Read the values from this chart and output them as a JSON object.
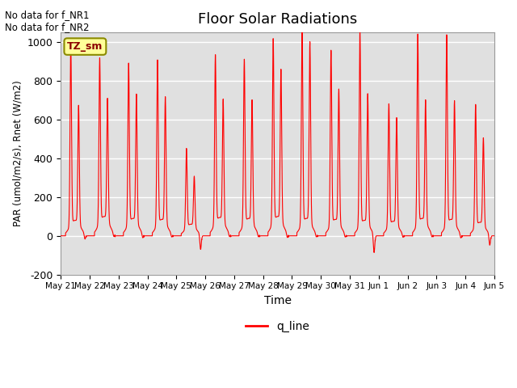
{
  "title": "Floor Solar Radiations",
  "ylabel": "PAR (umol/m2/s), Rnet (W/m2)",
  "xlabel": "Time",
  "ylim": [
    -200,
    1050
  ],
  "yticks": [
    -200,
    0,
    200,
    400,
    600,
    800,
    1000
  ],
  "background_color": "#e0e0e0",
  "line_color": "red",
  "legend_label": "q_line",
  "legend_box_color": "#ffff99",
  "legend_box_edge": "#8b8b00",
  "annotation_text": "No data for f_NR1\nNo data for f_NR2",
  "tz_label": "TZ_sm",
  "x_tick_labels": [
    "May 21",
    "May 22",
    "May 23",
    "May 24",
    "May 25",
    "May 26",
    "May 27",
    "May 28",
    "May 29",
    "May 30",
    "May 31",
    "Jun 1",
    "Jun 2",
    "Jun 3",
    "Jun 4",
    "Jun 5"
  ],
  "num_days": 15,
  "day_data": [
    {
      "p1": 930,
      "p2": 610,
      "base": 80,
      "neg": -30
    },
    {
      "p1": 850,
      "p2": 630,
      "base": 100,
      "neg": -20
    },
    {
      "p1": 830,
      "p2": 660,
      "base": 90,
      "neg": -25
    },
    {
      "p1": 850,
      "p2": 650,
      "base": 85,
      "neg": -20
    },
    {
      "p1": 410,
      "p2": 260,
      "base": 60,
      "neg": -80
    },
    {
      "p1": 870,
      "p2": 630,
      "base": 95,
      "neg": -20
    },
    {
      "p1": 850,
      "p2": 630,
      "base": 90,
      "neg": -20
    },
    {
      "p1": 950,
      "p2": 780,
      "base": 100,
      "neg": -25
    },
    {
      "p1": 1000,
      "p2": 930,
      "base": 90,
      "neg": -20
    },
    {
      "p1": 900,
      "p2": 690,
      "base": 85,
      "neg": -20
    },
    {
      "p1": 1000,
      "p2": 670,
      "base": 80,
      "neg": -100
    },
    {
      "p1": 630,
      "p2": 550,
      "base": 75,
      "neg": -20
    },
    {
      "p1": 980,
      "p2": 630,
      "base": 90,
      "neg": -20
    },
    {
      "p1": 980,
      "p2": 630,
      "base": 85,
      "neg": -25
    },
    {
      "p1": 630,
      "p2": 450,
      "base": 70,
      "neg": -60
    }
  ]
}
